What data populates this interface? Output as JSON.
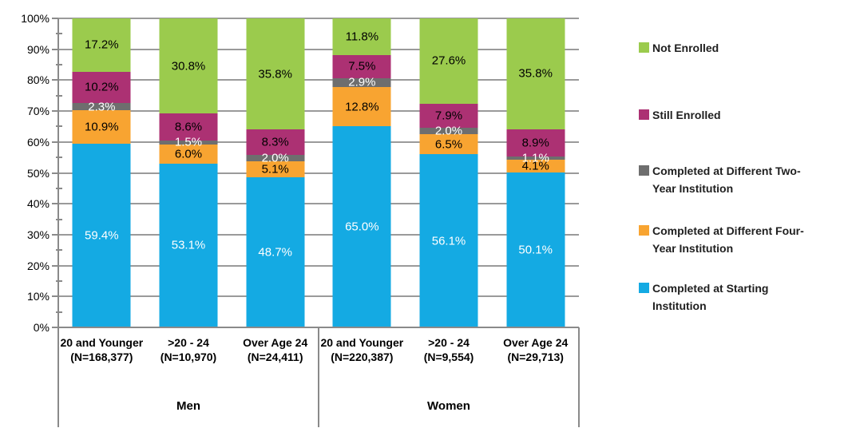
{
  "chart_data": {
    "type": "bar",
    "subtype": "100%-stacked-column",
    "title": "",
    "xlabel": "",
    "ylabel": "",
    "ylim": [
      0,
      100
    ],
    "grid": true,
    "legend_position": "right",
    "groups": [
      "Men",
      "Women"
    ],
    "categories": [
      {
        "group": "Men",
        "label": "20 and Younger",
        "n_label": "(N=168,377)"
      },
      {
        "group": "Men",
        "label": ">20 - 24",
        "n_label": "(N=10,970)"
      },
      {
        "group": "Men",
        "label": "Over Age 24",
        "n_label": "(N=24,411)"
      },
      {
        "group": "Women",
        "label": "20 and Younger",
        "n_label": "(N=220,387)"
      },
      {
        "group": "Women",
        "label": ">20 - 24",
        "n_label": "(N=9,554)"
      },
      {
        "group": "Women",
        "label": "Over Age 24",
        "n_label": "(N=29,713)"
      }
    ],
    "series": [
      {
        "name": "Completed at Starting Institution",
        "color": "#14AAE3",
        "label_color": "#FFFFFF",
        "values": [
          59.4,
          53.1,
          48.7,
          65.0,
          56.1,
          50.1
        ],
        "labels": [
          "59.4%",
          "53.1%",
          "48.7%",
          "65.0%",
          "56.1%",
          "50.1%"
        ]
      },
      {
        "name": "Completed at Different Four-Year Institution",
        "color": "#F8A431",
        "label_color": "#000000",
        "values": [
          10.9,
          6.0,
          5.1,
          12.8,
          6.5,
          4.1
        ],
        "labels": [
          "10.9%",
          "6.0%",
          "5.1%",
          "12.8%",
          "6.5%",
          "4.1%"
        ]
      },
      {
        "name": "Completed at Different Two-Year Institution",
        "color": "#6E6E6E",
        "label_color": "#FFFFFF",
        "values": [
          2.3,
          1.5,
          2.0,
          2.9,
          2.0,
          1.1
        ],
        "labels": [
          "2.3%",
          "1.5%",
          "2.0%",
          "2.9%",
          "2.0%",
          "1.1%"
        ]
      },
      {
        "name": "Still Enrolled",
        "color": "#AC3173",
        "label_color": "#000000",
        "values": [
          10.2,
          8.6,
          8.3,
          7.5,
          7.9,
          8.9
        ],
        "labels": [
          "10.2%",
          "8.6%",
          "8.3%",
          "7.5%",
          "7.9%",
          "8.9%"
        ]
      },
      {
        "name": "Not Enrolled",
        "color": "#9BCB4D",
        "label_color": "#000000",
        "values": [
          17.2,
          30.8,
          35.8,
          11.8,
          27.6,
          35.8
        ],
        "labels": [
          "17.2%",
          "30.8%",
          "35.8%",
          "11.8%",
          "27.6%",
          "35.8%"
        ]
      }
    ],
    "yaxis": {
      "min": 0,
      "max": 100,
      "major_step": 10,
      "minor_step": 5,
      "tick_labels": [
        "100%",
        "90%",
        "80%",
        "70%",
        "60%",
        "50%",
        "40%",
        "30%",
        "20%",
        "10%",
        "0%"
      ]
    },
    "legend": [
      "Not Enrolled",
      "Still Enrolled",
      "Completed at Different Two-Year Institution",
      "Completed at Different Four-Year Institution",
      "Completed at Starting Institution"
    ],
    "legend_tops": [
      50,
      134,
      204,
      279,
      351
    ],
    "colors": {
      "gridline": "#9A9A9A",
      "axis": "#8A8A8A",
      "background": "#FFFFFF"
    }
  }
}
